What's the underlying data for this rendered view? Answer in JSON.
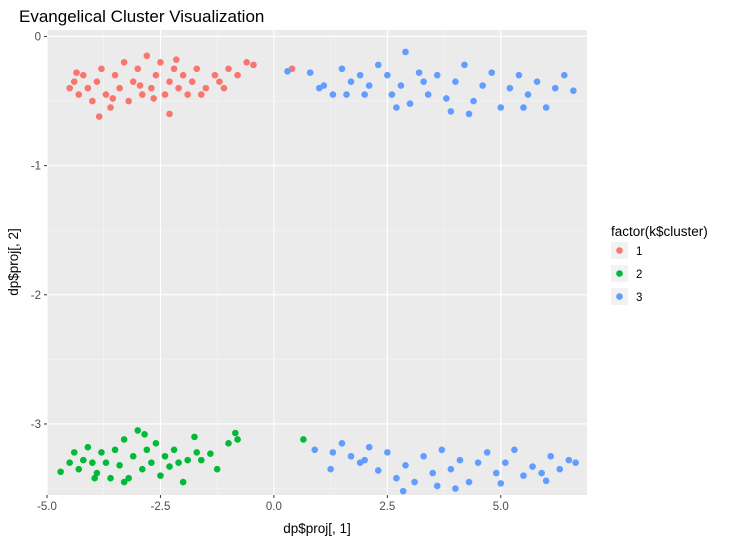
{
  "chart_data": {
    "type": "scatter",
    "title": "Evangelical Cluster Visualization",
    "xlabel": "dp$proj[, 1]",
    "ylabel": "dp$proj[, 2]",
    "xlim": [
      -5.0,
      6.9
    ],
    "ylim": [
      -3.55,
      0.05
    ],
    "x_ticks": [
      -5.0,
      -2.5,
      0.0,
      2.5,
      5.0
    ],
    "x_tick_labels": [
      "-5.0",
      "-2.5",
      "0.0",
      "2.5",
      "5.0"
    ],
    "y_ticks": [
      0,
      -1,
      -2,
      -3
    ],
    "y_tick_labels": [
      "0",
      "-1",
      "-2",
      "-3"
    ],
    "grid": true,
    "panel_background": "#ebebeb",
    "legend": {
      "title": "factor(k$cluster)",
      "placement": "right",
      "entries": [
        {
          "label": "1",
          "color": "#f8766d"
        },
        {
          "label": "2",
          "color": "#00ba38"
        },
        {
          "label": "3",
          "color": "#619cff"
        }
      ]
    },
    "series": [
      {
        "name": "1",
        "color": "#f8766d",
        "points": [
          [
            -4.5,
            -0.4
          ],
          [
            -4.4,
            -0.35
          ],
          [
            -4.3,
            -0.45
          ],
          [
            -4.2,
            -0.3
          ],
          [
            -4.1,
            -0.4
          ],
          [
            -4.0,
            -0.5
          ],
          [
            -3.9,
            -0.35
          ],
          [
            -3.8,
            -0.25
          ],
          [
            -3.7,
            -0.45
          ],
          [
            -3.6,
            -0.55
          ],
          [
            -3.5,
            -0.3
          ],
          [
            -3.4,
            -0.4
          ],
          [
            -3.3,
            -0.2
          ],
          [
            -3.2,
            -0.5
          ],
          [
            -3.1,
            -0.35
          ],
          [
            -3.0,
            -0.25
          ],
          [
            -2.9,
            -0.45
          ],
          [
            -2.8,
            -0.15
          ],
          [
            -2.7,
            -0.4
          ],
          [
            -2.6,
            -0.3
          ],
          [
            -2.5,
            -0.2
          ],
          [
            -2.4,
            -0.45
          ],
          [
            -2.3,
            -0.35
          ],
          [
            -2.2,
            -0.25
          ],
          [
            -2.1,
            -0.4
          ],
          [
            -2.0,
            -0.3
          ],
          [
            -1.9,
            -0.45
          ],
          [
            -1.8,
            -0.35
          ],
          [
            -1.7,
            -0.25
          ],
          [
            -1.5,
            -0.4
          ],
          [
            -1.3,
            -0.3
          ],
          [
            -1.2,
            -0.35
          ],
          [
            -1.0,
            -0.25
          ],
          [
            -0.8,
            -0.3
          ],
          [
            -0.6,
            -0.2
          ],
          [
            -0.45,
            -0.22
          ],
          [
            -3.85,
            -0.62
          ],
          [
            -2.3,
            -0.6
          ],
          [
            -4.35,
            -0.28
          ],
          [
            -3.55,
            -0.48
          ],
          [
            -2.95,
            -0.38
          ],
          [
            -2.65,
            -0.48
          ],
          [
            -2.15,
            -0.18
          ],
          [
            -1.6,
            -0.45
          ],
          [
            -1.1,
            -0.4
          ],
          [
            0.4,
            -0.25
          ]
        ]
      },
      {
        "name": "2",
        "color": "#00ba38",
        "points": [
          [
            -4.7,
            -3.37
          ],
          [
            -4.5,
            -3.3
          ],
          [
            -4.4,
            -3.22
          ],
          [
            -4.3,
            -3.35
          ],
          [
            -4.2,
            -3.28
          ],
          [
            -4.1,
            -3.18
          ],
          [
            -4.0,
            -3.3
          ],
          [
            -3.9,
            -3.38
          ],
          [
            -3.8,
            -3.22
          ],
          [
            -3.7,
            -3.3
          ],
          [
            -3.6,
            -3.42
          ],
          [
            -3.5,
            -3.2
          ],
          [
            -3.4,
            -3.32
          ],
          [
            -3.3,
            -3.12
          ],
          [
            -3.2,
            -3.42
          ],
          [
            -3.1,
            -3.25
          ],
          [
            -3.0,
            -3.05
          ],
          [
            -2.9,
            -3.35
          ],
          [
            -2.8,
            -3.2
          ],
          [
            -2.7,
            -3.3
          ],
          [
            -2.6,
            -3.15
          ],
          [
            -2.5,
            -3.4
          ],
          [
            -2.4,
            -3.25
          ],
          [
            -2.3,
            -3.33
          ],
          [
            -2.2,
            -3.2
          ],
          [
            -2.1,
            -3.3
          ],
          [
            -2.0,
            -3.45
          ],
          [
            -1.9,
            -3.28
          ],
          [
            -1.7,
            -3.22
          ],
          [
            -1.6,
            -3.28
          ],
          [
            -1.4,
            -3.23
          ],
          [
            -1.25,
            -3.35
          ],
          [
            -1.0,
            -3.15
          ],
          [
            -0.85,
            -3.07
          ],
          [
            -0.8,
            -3.12
          ],
          [
            0.65,
            -3.12
          ],
          [
            -3.3,
            -3.45
          ],
          [
            -1.75,
            -3.1
          ],
          [
            -3.95,
            -3.42
          ],
          [
            -2.85,
            -3.08
          ]
        ]
      },
      {
        "name": "3",
        "color": "#619cff",
        "points": [
          [
            0.3,
            -0.27
          ],
          [
            0.8,
            -0.28
          ],
          [
            1.1,
            -0.38
          ],
          [
            1.3,
            -0.45
          ],
          [
            1.5,
            -0.25
          ],
          [
            1.6,
            -0.45
          ],
          [
            1.7,
            -0.35
          ],
          [
            1.9,
            -0.3
          ],
          [
            2.1,
            -0.38
          ],
          [
            2.3,
            -0.22
          ],
          [
            2.5,
            -0.3
          ],
          [
            2.6,
            -0.45
          ],
          [
            2.8,
            -0.38
          ],
          [
            2.9,
            -0.12
          ],
          [
            3.0,
            -0.52
          ],
          [
            3.2,
            -0.28
          ],
          [
            3.4,
            -0.45
          ],
          [
            3.6,
            -0.3
          ],
          [
            3.8,
            -0.48
          ],
          [
            4.0,
            -0.35
          ],
          [
            4.2,
            -0.22
          ],
          [
            4.4,
            -0.5
          ],
          [
            4.6,
            -0.38
          ],
          [
            4.8,
            -0.28
          ],
          [
            5.0,
            -0.55
          ],
          [
            5.2,
            -0.4
          ],
          [
            5.4,
            -0.3
          ],
          [
            5.6,
            -0.45
          ],
          [
            5.8,
            -0.35
          ],
          [
            6.0,
            -0.55
          ],
          [
            6.2,
            -0.4
          ],
          [
            6.4,
            -0.3
          ],
          [
            6.6,
            -0.42
          ],
          [
            4.3,
            -0.6
          ],
          [
            3.9,
            -0.58
          ],
          [
            5.5,
            -0.55
          ],
          [
            2.0,
            -0.45
          ],
          [
            1.0,
            -0.4
          ],
          [
            2.7,
            -0.55
          ],
          [
            3.3,
            -0.35
          ],
          [
            1.3,
            -3.22
          ],
          [
            1.5,
            -3.15
          ],
          [
            1.7,
            -3.25
          ],
          [
            1.9,
            -3.3
          ],
          [
            2.1,
            -3.18
          ],
          [
            2.3,
            -3.36
          ],
          [
            2.5,
            -3.22
          ],
          [
            2.7,
            -3.42
          ],
          [
            2.9,
            -3.32
          ],
          [
            3.1,
            -3.45
          ],
          [
            3.3,
            -3.25
          ],
          [
            3.5,
            -3.38
          ],
          [
            3.7,
            -3.2
          ],
          [
            3.9,
            -3.35
          ],
          [
            4.1,
            -3.28
          ],
          [
            4.3,
            -3.45
          ],
          [
            4.5,
            -3.3
          ],
          [
            4.7,
            -3.22
          ],
          [
            4.9,
            -3.38
          ],
          [
            5.1,
            -3.3
          ],
          [
            5.3,
            -3.2
          ],
          [
            5.5,
            -3.4
          ],
          [
            5.7,
            -3.33
          ],
          [
            5.9,
            -3.38
          ],
          [
            6.1,
            -3.25
          ],
          [
            6.3,
            -3.35
          ],
          [
            6.5,
            -3.28
          ],
          [
            6.65,
            -3.3
          ],
          [
            2.85,
            -3.52
          ],
          [
            3.6,
            -3.48
          ],
          [
            0.9,
            -3.2
          ],
          [
            1.25,
            -3.35
          ],
          [
            2.0,
            -3.28
          ],
          [
            4.0,
            -3.5
          ],
          [
            5.0,
            -3.46
          ],
          [
            6.0,
            -3.44
          ]
        ]
      }
    ]
  }
}
